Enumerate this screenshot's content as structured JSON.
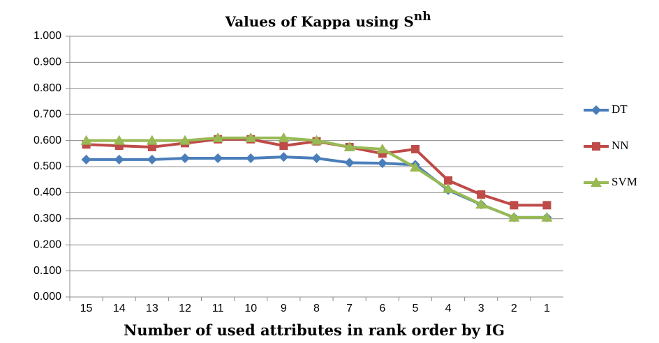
{
  "chart_data": {
    "type": "line",
    "title": "Values of Kappa  using S",
    "title_superscript": "nh",
    "x_label": "Number of  used attributes in rank order by IG",
    "categories": [
      "15",
      "14",
      "13",
      "12",
      "11",
      "10",
      "9",
      "8",
      "7",
      "6",
      "5",
      "4",
      "3",
      "2",
      "1"
    ],
    "series": [
      {
        "name": "DT",
        "color": "#4a7ebb",
        "marker": "diamond",
        "values": [
          0.527,
          0.527,
          0.527,
          0.532,
          0.532,
          0.532,
          0.537,
          0.532,
          0.515,
          0.513,
          0.507,
          0.41,
          0.355,
          0.305,
          0.305
        ]
      },
      {
        "name": "NN",
        "color": "#be4b48",
        "marker": "square",
        "values": [
          0.585,
          0.58,
          0.575,
          0.59,
          0.605,
          0.605,
          0.58,
          0.597,
          0.575,
          0.55,
          0.567,
          0.447,
          0.393,
          0.352,
          0.352
        ]
      },
      {
        "name": "SVM",
        "color": "#98b954",
        "marker": "triangle",
        "values": [
          0.6,
          0.6,
          0.6,
          0.6,
          0.61,
          0.61,
          0.61,
          0.6,
          0.575,
          0.567,
          0.497,
          0.415,
          0.355,
          0.305,
          0.305
        ]
      }
    ],
    "ylim": [
      0,
      1
    ],
    "yticks": [
      {
        "value": 0,
        "label": "0.000"
      },
      {
        "value": 0.1,
        "label": "0.100"
      },
      {
        "value": 0.2,
        "label": "0.200"
      },
      {
        "value": 0.3,
        "label": "0.300"
      },
      {
        "value": 0.4,
        "label": "0.400"
      },
      {
        "value": 0.5,
        "label": "0.500"
      },
      {
        "value": 0.6,
        "label": "0.600"
      },
      {
        "value": 0.7,
        "label": "0.700"
      },
      {
        "value": 0.8,
        "label": "0.800"
      },
      {
        "value": 0.9,
        "label": "0.900"
      },
      {
        "value": 1,
        "label": "1.000"
      }
    ],
    "grid": true,
    "legend": "right"
  }
}
